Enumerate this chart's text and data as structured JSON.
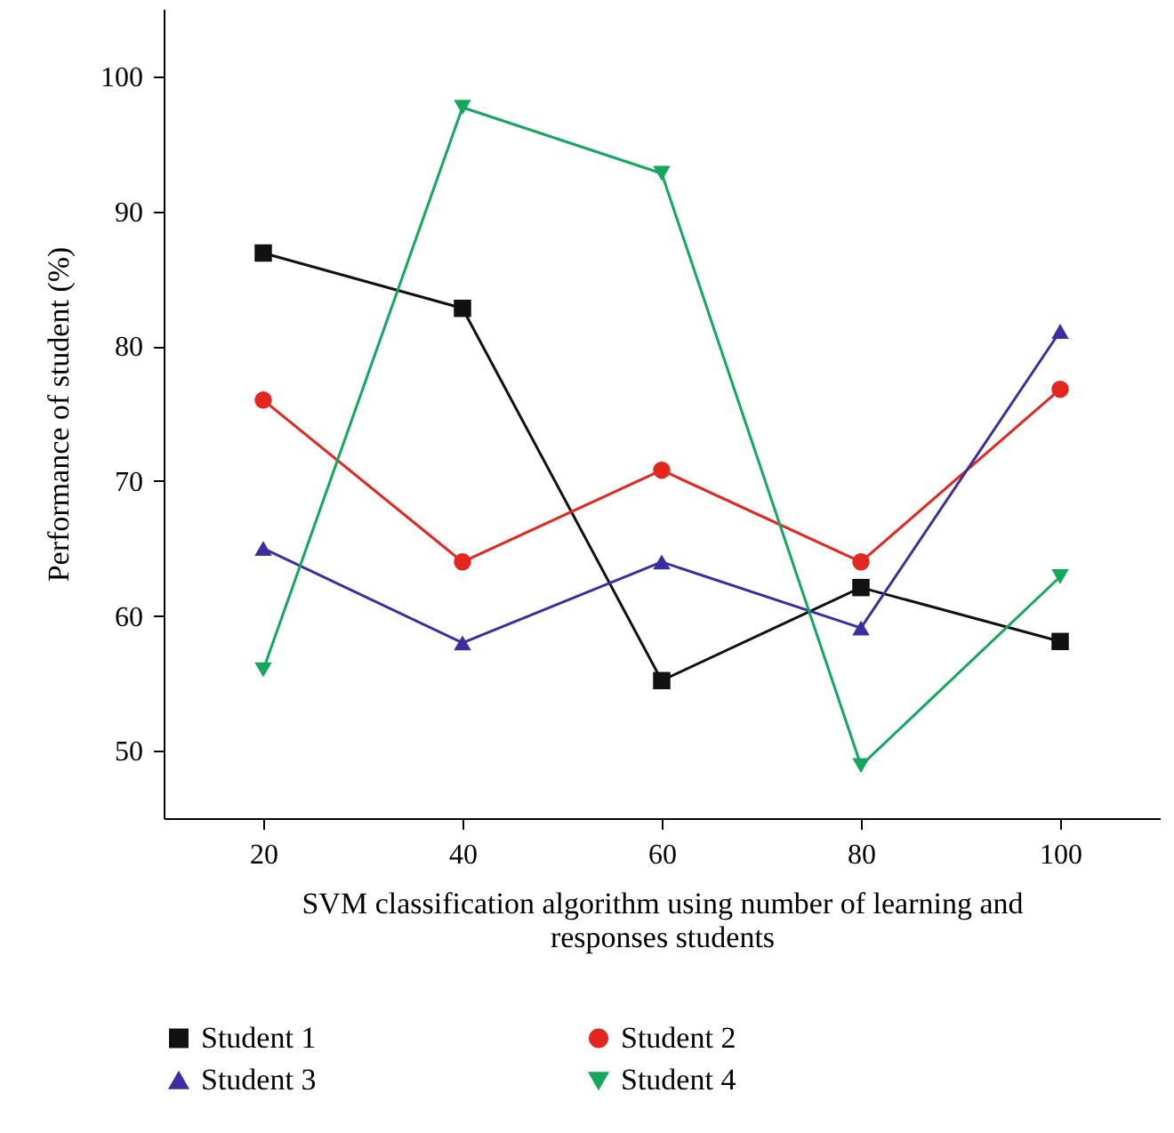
{
  "chart_data": {
    "type": "line",
    "xlabel": "SVM classification algorithm using number of learning and responses students",
    "ylabel": "Performance of student (%)",
    "x": [
      20,
      40,
      60,
      80,
      100
    ],
    "series": [
      {
        "name": "Student 1",
        "color": "#111111",
        "marker": "square",
        "values": [
          86.9,
          82.8,
          55.2,
          62.1,
          58.1
        ]
      },
      {
        "name": "Student 2",
        "color": "#e3261e",
        "marker": "circle",
        "values": [
          76.0,
          64.0,
          70.8,
          64.0,
          76.8
        ]
      },
      {
        "name": "Student 3",
        "color": "#3a2ea0",
        "marker": "triangle",
        "values": [
          65.0,
          58.0,
          64.0,
          59.1,
          81.1
        ]
      },
      {
        "name": "Student 4",
        "color": "#13a85c",
        "marker": "triangle-down",
        "values": [
          56.0,
          97.7,
          92.8,
          48.9,
          62.9
        ]
      }
    ],
    "xlim": [
      10,
      110
    ],
    "ylim": [
      45,
      105
    ],
    "xticks": [
      20,
      40,
      60,
      80,
      100
    ],
    "yticks": [
      50,
      60,
      70,
      80,
      90,
      100
    ],
    "grid": false,
    "legend": "bottom",
    "line_style": "solid"
  }
}
